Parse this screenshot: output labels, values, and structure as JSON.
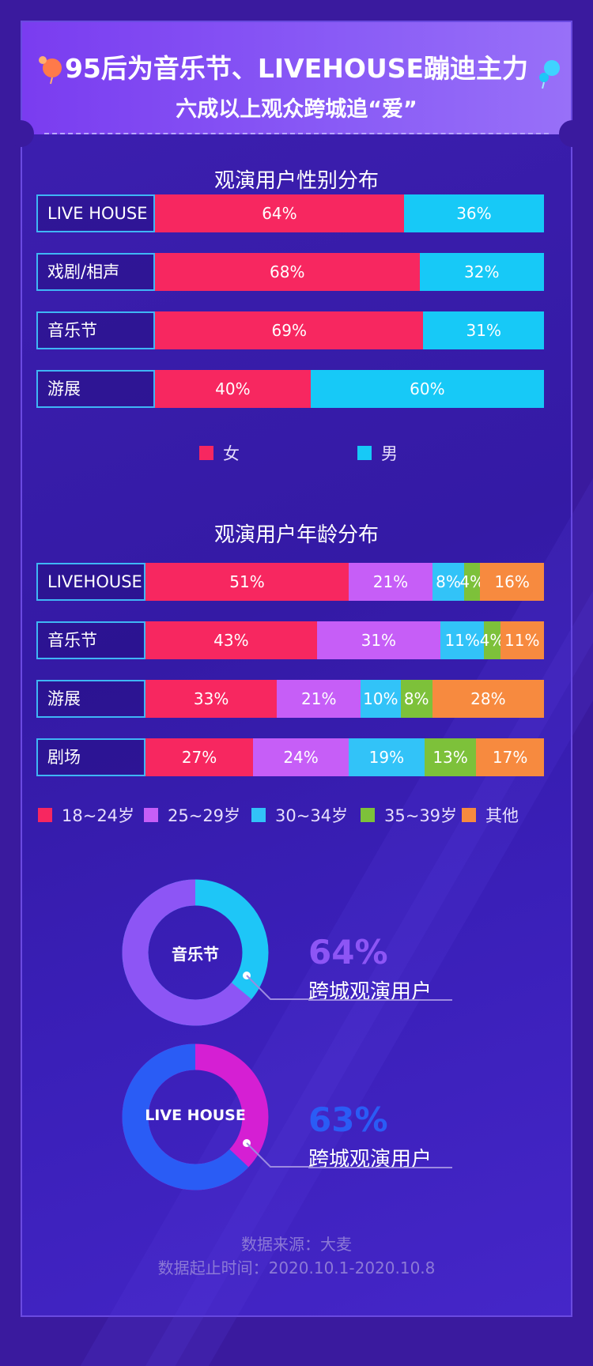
{
  "header": {
    "title": "95后为音乐节、LIVEHOUSE蹦迪主力",
    "subtitle": "六成以上观众跨城追“爱”"
  },
  "colors": {
    "female": "#f72760",
    "male": "#17c9f7",
    "age_18_24": "#f72760",
    "age_25_29": "#c65ef7",
    "age_30_34": "#32c3f8",
    "age_35_39": "#7dc13a",
    "age_other": "#f78a3f",
    "donut1_main": "#8d55f5",
    "donut1_part": "#1ec6f7",
    "donut2_main": "#2a5cf5",
    "donut2_part": "#d51fd3"
  },
  "chart_data": [
    {
      "type": "bar",
      "stacked": true,
      "orientation": "horizontal",
      "title": "观演用户性别分布",
      "categories": [
        "LIVE HOUSE",
        "戏剧/相声",
        "音乐节",
        "游展"
      ],
      "series": [
        {
          "name": "女",
          "values": [
            64,
            68,
            69,
            40
          ],
          "labels": [
            "64%",
            "68%",
            "69%",
            "40%"
          ]
        },
        {
          "name": "男",
          "values": [
            36,
            32,
            31,
            60
          ],
          "labels": [
            "36%",
            "32%",
            "31%",
            "60%"
          ]
        }
      ],
      "legend_position": "bottom"
    },
    {
      "type": "bar",
      "stacked": true,
      "orientation": "horizontal",
      "title": "观演用户年龄分布",
      "categories": [
        "LIVEHOUSE",
        "音乐节",
        "游展",
        "剧场"
      ],
      "series": [
        {
          "name": "18~24岁",
          "values": [
            51,
            43,
            33,
            27
          ],
          "labels": [
            "51%",
            "43%",
            "33%",
            "27%"
          ]
        },
        {
          "name": "25~29岁",
          "values": [
            21,
            31,
            21,
            24
          ],
          "labels": [
            "21%",
            "31%",
            "21%",
            "24%"
          ]
        },
        {
          "name": "30~34岁",
          "values": [
            8,
            11,
            10,
            19
          ],
          "labels": [
            "8%",
            "11%",
            "10%",
            "19%"
          ]
        },
        {
          "name": "35~39岁",
          "values": [
            4,
            4,
            8,
            13
          ],
          "labels": [
            "4%",
            "4%",
            "8%",
            "13%"
          ]
        },
        {
          "name": "其他",
          "values": [
            16,
            11,
            28,
            17
          ],
          "labels": [
            "16%",
            "11%",
            "28%",
            "17%"
          ]
        }
      ],
      "legend_position": "bottom"
    },
    {
      "type": "pie",
      "donut": true,
      "center_label": "音乐节",
      "value": 64,
      "value_label": "64%",
      "caption": "跨城观演用户"
    },
    {
      "type": "pie",
      "donut": true,
      "center_label": "LIVE HOUSE",
      "value": 63,
      "value_label": "63%",
      "caption": "跨城观演用户"
    }
  ],
  "footer": {
    "source": "数据来源：大麦",
    "period": "数据起止时间：2020.10.1-2020.10.8"
  }
}
